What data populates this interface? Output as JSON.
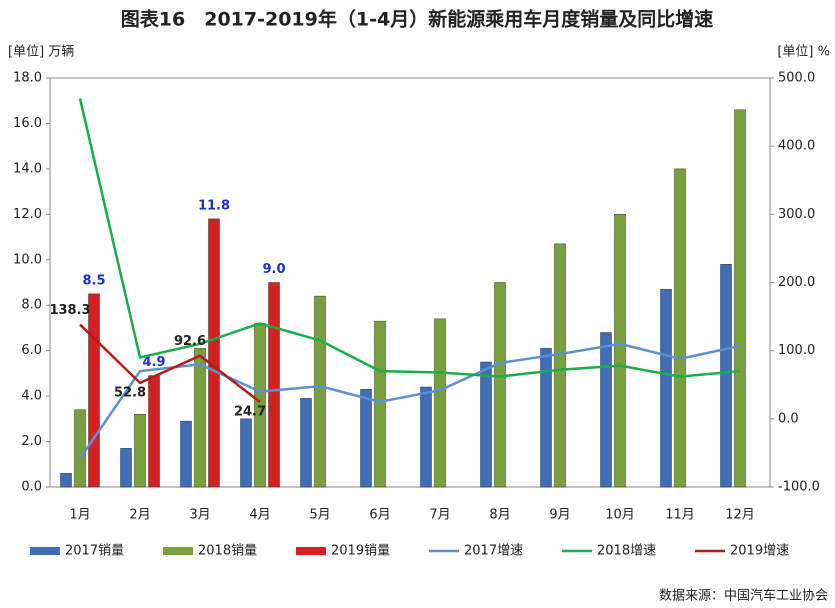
{
  "chart_data": {
    "type": "bar",
    "title": "图表16　2017-2019年（1-4月）新能源乘用车月度销量及同比增速",
    "y_label": "[单位] 万辆",
    "y2_label": "[单位] %",
    "source": "数据来源：中国汽车工业协会",
    "categories": [
      "1月",
      "2月",
      "3月",
      "4月",
      "5月",
      "6月",
      "7月",
      "8月",
      "9月",
      "10月",
      "11月",
      "12月"
    ],
    "ylim": [
      0,
      18
    ],
    "yticks": [
      {
        "value": 0,
        "label": "0.0"
      },
      {
        "value": 2,
        "label": "2.0"
      },
      {
        "value": 4,
        "label": "4.0"
      },
      {
        "value": 6,
        "label": "6.0"
      },
      {
        "value": 8,
        "label": "8.0"
      },
      {
        "value": 10,
        "label": "10.0"
      },
      {
        "value": 12,
        "label": "12.0"
      },
      {
        "value": 14,
        "label": "14.0"
      },
      {
        "value": 16,
        "label": "16.0"
      },
      {
        "value": 18,
        "label": "18.0"
      }
    ],
    "y2lim": [
      -100,
      500
    ],
    "y2ticks": [
      {
        "value": -100,
        "label": "-100.0"
      },
      {
        "value": 0,
        "label": "0.0"
      },
      {
        "value": 100,
        "label": "100.0"
      },
      {
        "value": 200,
        "label": "200.0"
      },
      {
        "value": 300,
        "label": "300.0"
      },
      {
        "value": 400,
        "label": "400.0"
      },
      {
        "value": 500,
        "label": "500.0"
      }
    ],
    "series": [
      {
        "name": "2017销量",
        "type": "bar",
        "color": "#3f6fb8",
        "values": [
          0.6,
          1.7,
          2.9,
          3.0,
          3.9,
          4.3,
          4.4,
          5.5,
          6.1,
          6.8,
          8.7,
          9.8
        ]
      },
      {
        "name": "2018销量",
        "type": "bar",
        "color": "#78a03c",
        "values": [
          3.4,
          3.2,
          6.1,
          7.2,
          8.4,
          7.3,
          7.4,
          9.0,
          10.7,
          12.0,
          14.0,
          16.6
        ]
      },
      {
        "name": "2019销量",
        "type": "bar",
        "color": "#d42222",
        "values": [
          8.5,
          4.9,
          11.8,
          9.0,
          null,
          null,
          null,
          null,
          null,
          null,
          null,
          null
        ],
        "value_labels": [
          "8.5",
          "4.9",
          "11.8",
          "9.0",
          null,
          null,
          null,
          null,
          null,
          null,
          null,
          null
        ]
      },
      {
        "name": "2017增速",
        "type": "line",
        "axis": "y2",
        "color": "#5b8fd6",
        "values": [
          -58,
          70,
          80,
          40,
          48,
          25,
          42,
          82,
          95,
          110,
          88,
          107
        ]
      },
      {
        "name": "2018增速",
        "type": "line",
        "axis": "y2",
        "color": "#19ae48",
        "values": [
          470,
          90,
          110,
          140,
          115,
          70,
          68,
          62,
          72,
          78,
          62,
          70
        ]
      },
      {
        "name": "2019增速",
        "type": "line",
        "axis": "y2",
        "color": "#b41a1a",
        "values": [
          138.3,
          52.8,
          92.6,
          24.7,
          null,
          null,
          null,
          null,
          null,
          null,
          null,
          null
        ],
        "labeled": true
      }
    ]
  }
}
